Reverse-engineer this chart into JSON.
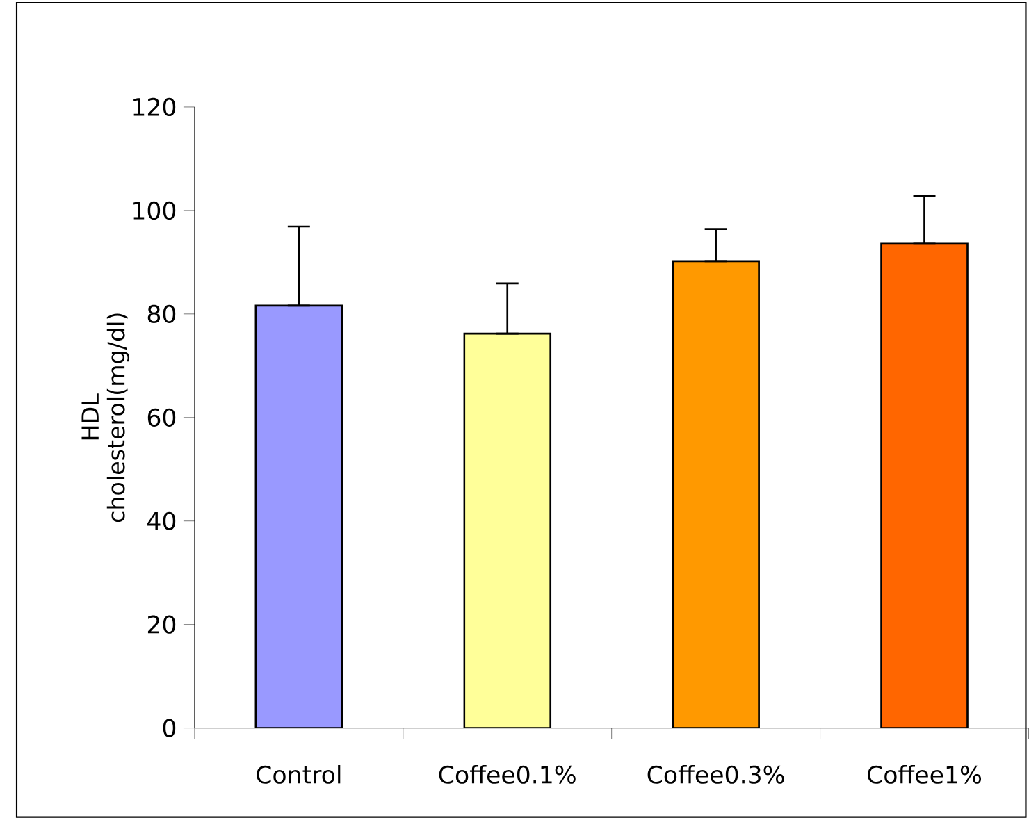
{
  "chart_data": {
    "type": "bar",
    "ylabel": "HDL cholesterol(mg/dl)",
    "categories": [
      "Control",
      "Coffee0.1%",
      "Coffee0.3%",
      "Coffee1%"
    ],
    "values": [
      81.6,
      76.2,
      90.2,
      93.7
    ],
    "colors": [
      "#9999ff",
      "#ffff99",
      "#ff9900",
      "#ff6600"
    ],
    "errors": [
      [
        81.6,
        96.9
      ],
      [
        76.2,
        85.9
      ],
      [
        90.2,
        96.4
      ],
      [
        93.7,
        102.8
      ]
    ],
    "ylim": [
      0,
      120
    ],
    "yticks": [
      0,
      20,
      40,
      60,
      80,
      100,
      120
    ]
  }
}
